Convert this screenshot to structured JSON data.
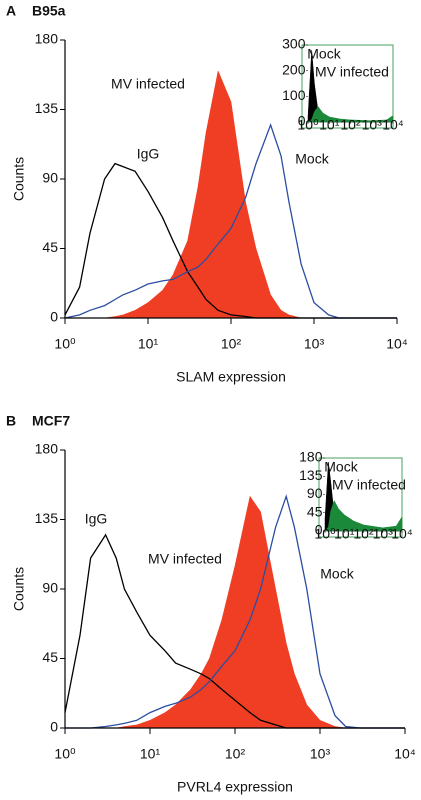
{
  "chart_data": [
    {
      "type": "area",
      "panel": "A",
      "title": "B95a",
      "xlabel": "SLAM expression",
      "ylabel": "Counts",
      "log_x": true,
      "x": [
        1,
        1.5,
        2,
        3,
        4,
        5,
        7,
        10,
        15,
        20,
        30,
        40,
        50,
        70,
        100,
        150,
        200,
        300,
        400,
        500,
        700,
        1000,
        1500,
        2000,
        3000,
        5000,
        10000
      ],
      "xlim": [
        1,
        10000
      ],
      "xticks": [
        {
          "value": 1,
          "label": "10⁰"
        },
        {
          "value": 10,
          "label": "10¹"
        },
        {
          "value": 100,
          "label": "10²"
        },
        {
          "value": 1000,
          "label": "10³"
        },
        {
          "value": 10000,
          "label": "10⁴"
        }
      ],
      "ylim": [
        0,
        180
      ],
      "yticks": [
        0,
        45,
        90,
        135,
        180
      ],
      "series": [
        {
          "name": "MV infected",
          "color": "#ef3e23",
          "fill": true,
          "values": [
            0,
            0,
            0,
            0,
            1,
            2,
            5,
            10,
            18,
            28,
            50,
            85,
            120,
            160,
            140,
            75,
            45,
            15,
            5,
            2,
            0,
            0,
            0,
            0,
            0,
            0,
            0
          ]
        },
        {
          "name": "IgG",
          "color": "#000000",
          "fill": false,
          "values": [
            2,
            20,
            55,
            90,
            100,
            98,
            95,
            82,
            65,
            50,
            30,
            20,
            12,
            5,
            2,
            1,
            0,
            0,
            0,
            0,
            0,
            0,
            0,
            0,
            0,
            0,
            0
          ]
        },
        {
          "name": "Mock",
          "color": "#2b4ea2",
          "fill": false,
          "values": [
            0,
            2,
            5,
            8,
            12,
            15,
            18,
            22,
            24,
            25,
            30,
            33,
            38,
            48,
            58,
            78,
            100,
            125,
            105,
            75,
            35,
            10,
            2,
            0,
            0,
            0,
            0
          ]
        }
      ],
      "inset": {
        "x": [
          1,
          1.5,
          2,
          3,
          5,
          10,
          30,
          100,
          1000,
          5000,
          10000
        ],
        "xlim": [
          1,
          10000
        ],
        "xticks": [
          {
            "value": 1,
            "label": "10⁰"
          },
          {
            "value": 10,
            "label": "10¹"
          },
          {
            "value": 100,
            "label": "10²"
          },
          {
            "value": 1000,
            "label": "10³"
          },
          {
            "value": 10000,
            "label": "10⁴"
          }
        ],
        "ylim": [
          0,
          300
        ],
        "yticks": [
          0,
          100,
          200,
          300
        ],
        "series": [
          {
            "name": "Mock",
            "color": "#000000",
            "fill": true,
            "values": [
              20,
              280,
              150,
              40,
              5,
              0,
              0,
              0,
              0,
              0,
              0
            ]
          },
          {
            "name": "MV infected",
            "color": "#1a8a3a",
            "fill": true,
            "values": [
              0,
              10,
              40,
              60,
              35,
              20,
              12,
              8,
              5,
              8,
              25
            ]
          }
        ]
      }
    },
    {
      "type": "area",
      "panel": "B",
      "title": "MCF7",
      "xlabel": "PVRL4 expression",
      "ylabel": "Counts",
      "log_x": true,
      "x": [
        1,
        1.5,
        2,
        3,
        4,
        5,
        7,
        10,
        15,
        20,
        30,
        40,
        50,
        70,
        100,
        150,
        200,
        300,
        400,
        500,
        700,
        1000,
        1500,
        2000,
        3000,
        5000,
        10000
      ],
      "xlim": [
        1,
        10000
      ],
      "xticks": [
        {
          "value": 1,
          "label": "10⁰"
        },
        {
          "value": 10,
          "label": "10¹"
        },
        {
          "value": 100,
          "label": "10²"
        },
        {
          "value": 1000,
          "label": "10³"
        },
        {
          "value": 10000,
          "label": "10⁴"
        }
      ],
      "ylim": [
        0,
        180
      ],
      "yticks": [
        0,
        45,
        90,
        135,
        180
      ],
      "series": [
        {
          "name": "MV infected",
          "color": "#ef3e23",
          "fill": true,
          "values": [
            0,
            0,
            0,
            0,
            0,
            1,
            2,
            5,
            10,
            15,
            25,
            35,
            45,
            70,
            105,
            150,
            140,
            90,
            55,
            35,
            15,
            5,
            1,
            0,
            0,
            0,
            0
          ]
        },
        {
          "name": "IgG",
          "color": "#000000",
          "fill": false,
          "values": [
            10,
            60,
            110,
            125,
            110,
            90,
            75,
            60,
            50,
            42,
            38,
            35,
            32,
            25,
            18,
            10,
            5,
            2,
            0,
            0,
            0,
            0,
            0,
            0,
            0,
            0,
            0
          ]
        },
        {
          "name": "Mock",
          "color": "#2b4ea2",
          "fill": false,
          "values": [
            0,
            0,
            0,
            1,
            2,
            3,
            5,
            10,
            14,
            16,
            20,
            25,
            30,
            40,
            50,
            70,
            90,
            130,
            150,
            130,
            90,
            35,
            8,
            1,
            0,
            0,
            0
          ]
        }
      ],
      "inset": {
        "x": [
          1,
          1.5,
          2,
          3,
          5,
          10,
          30,
          100,
          1000,
          5000,
          10000
        ],
        "xlim": [
          1,
          10000
        ],
        "xticks": [
          {
            "value": 1,
            "label": "10⁰"
          },
          {
            "value": 10,
            "label": "10¹"
          },
          {
            "value": 100,
            "label": "10²"
          },
          {
            "value": 1000,
            "label": "10³"
          },
          {
            "value": 10000,
            "label": "10⁴"
          }
        ],
        "ylim": [
          0,
          180
        ],
        "yticks": [
          0,
          45,
          90,
          135,
          180
        ],
        "series": [
          {
            "name": "Mock",
            "color": "#000000",
            "fill": true,
            "values": [
              30,
              170,
              120,
              40,
              5,
              0,
              0,
              0,
              0,
              0,
              0
            ]
          },
          {
            "name": "MV infected",
            "color": "#1a8a3a",
            "fill": true,
            "values": [
              0,
              10,
              50,
              75,
              55,
              40,
              25,
              15,
              8,
              12,
              35
            ]
          }
        ]
      }
    }
  ]
}
